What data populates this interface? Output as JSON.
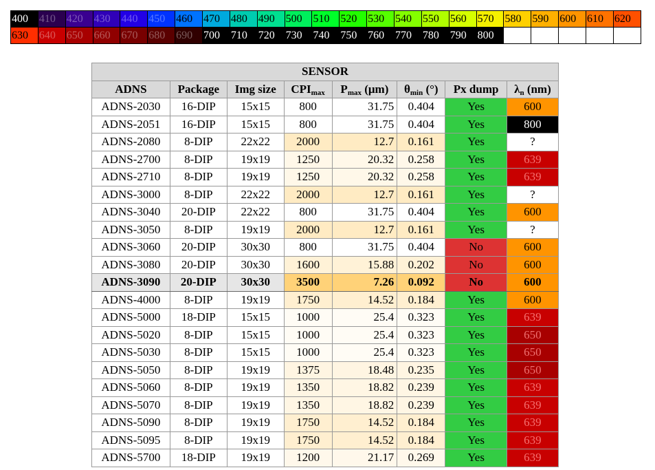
{
  "strip": {
    "rows": [
      [
        {
          "value": 400,
          "color": "#000000"
        },
        {
          "value": 410,
          "color": "#2a004f"
        },
        {
          "value": 420,
          "color": "#3a0090"
        },
        {
          "value": 430,
          "color": "#3000b8"
        },
        {
          "value": 440,
          "color": "#2200e6"
        },
        {
          "value": 450,
          "color": "#0033ff"
        },
        {
          "value": 460,
          "color": "#0073ff"
        },
        {
          "value": 470,
          "color": "#00aadd"
        },
        {
          "value": 480,
          "color": "#00ccb0"
        },
        {
          "value": 490,
          "color": "#00e090"
        },
        {
          "value": 500,
          "color": "#00f05c"
        },
        {
          "value": 510,
          "color": "#00ff2a"
        },
        {
          "value": 520,
          "color": "#22ff00"
        },
        {
          "value": 530,
          "color": "#55ff00"
        },
        {
          "value": 540,
          "color": "#84ff00"
        },
        {
          "value": 550,
          "color": "#b0ff00"
        },
        {
          "value": 560,
          "color": "#d6ff00"
        },
        {
          "value": 570,
          "color": "#f5f000"
        },
        {
          "value": 580,
          "color": "#ffd000"
        },
        {
          "value": 590,
          "color": "#ffb000"
        },
        {
          "value": 600,
          "color": "#ff9400"
        },
        {
          "value": 610,
          "color": "#ff7200"
        },
        {
          "value": 620,
          "color": "#ff5000"
        }
      ],
      [
        {
          "value": 630,
          "color": "#ff2e00"
        },
        {
          "value": 640,
          "color": "#c80000"
        },
        {
          "value": 650,
          "color": "#a80000"
        },
        {
          "value": 660,
          "color": "#900000"
        },
        {
          "value": 670,
          "color": "#780000"
        },
        {
          "value": 680,
          "color": "#5a0000"
        },
        {
          "value": 690,
          "color": "#300000"
        },
        {
          "value": 700,
          "color": "#000000"
        },
        {
          "value": 710,
          "color": "#000000"
        },
        {
          "value": 720,
          "color": "#000000"
        },
        {
          "value": 730,
          "color": "#000000"
        },
        {
          "value": 740,
          "color": "#000000"
        },
        {
          "value": 750,
          "color": "#000000"
        },
        {
          "value": 760,
          "color": "#000000"
        },
        {
          "value": 770,
          "color": "#000000"
        },
        {
          "value": 780,
          "color": "#000000"
        },
        {
          "value": 790,
          "color": "#000000"
        },
        {
          "value": 800,
          "color": "#000000"
        }
      ]
    ]
  },
  "table": {
    "title": "SENSOR",
    "columns": [
      {
        "main": "ADNS"
      },
      {
        "main": "Package"
      },
      {
        "main": "Img size"
      },
      {
        "main": "CPI",
        "sub": "max"
      },
      {
        "main": "P",
        "sub": "max",
        "suffix": " (μm)"
      },
      {
        "main": "θ",
        "sub": "min",
        "suffix": " (°)"
      },
      {
        "main": "Px dump"
      },
      {
        "main": "λ",
        "sub": "n",
        "suffix": " (nm)"
      }
    ],
    "rows": [
      {
        "cells": [
          "ADNS-2030",
          "16-DIP",
          "15x15",
          800,
          31.75,
          0.404,
          "Yes",
          600
        ]
      },
      {
        "cells": [
          "ADNS-2051",
          "16-DIP",
          "15x15",
          800,
          31.75,
          0.404,
          "Yes",
          800
        ]
      },
      {
        "cells": [
          "ADNS-2080",
          "8-DIP",
          "22x22",
          2000,
          12.7,
          0.161,
          "Yes",
          "?"
        ]
      },
      {
        "cells": [
          "ADNS-2700",
          "8-DIP",
          "19x19",
          1250,
          20.32,
          0.258,
          "Yes",
          639
        ]
      },
      {
        "cells": [
          "ADNS-2710",
          "8-DIP",
          "19x19",
          1250,
          20.32,
          0.258,
          "Yes",
          639
        ]
      },
      {
        "cells": [
          "ADNS-3000",
          "8-DIP",
          "22x22",
          2000,
          12.7,
          0.161,
          "Yes",
          "?"
        ]
      },
      {
        "cells": [
          "ADNS-3040",
          "20-DIP",
          "22x22",
          800,
          31.75,
          0.404,
          "Yes",
          600
        ]
      },
      {
        "cells": [
          "ADNS-3050",
          "8-DIP",
          "19x19",
          2000,
          12.7,
          0.161,
          "Yes",
          "?"
        ]
      },
      {
        "cells": [
          "ADNS-3060",
          "20-DIP",
          "30x30",
          800,
          31.75,
          0.404,
          "No",
          600
        ]
      },
      {
        "cells": [
          "ADNS-3080",
          "20-DIP",
          "30x30",
          1600,
          15.88,
          0.202,
          "No",
          600
        ]
      },
      {
        "cells": [
          "ADNS-3090",
          "20-DIP",
          "30x30",
          3500,
          7.26,
          0.092,
          "No",
          600
        ],
        "bold": true
      },
      {
        "cells": [
          "ADNS-4000",
          "8-DIP",
          "19x19",
          1750,
          14.52,
          0.184,
          "Yes",
          600
        ]
      },
      {
        "cells": [
          "ADNS-5000",
          "18-DIP",
          "15x15",
          1000,
          25.4,
          0.323,
          "Yes",
          639
        ]
      },
      {
        "cells": [
          "ADNS-5020",
          "8-DIP",
          "15x15",
          1000,
          25.4,
          0.323,
          "Yes",
          650
        ]
      },
      {
        "cells": [
          "ADNS-5030",
          "8-DIP",
          "15x15",
          1000,
          25.4,
          0.323,
          "Yes",
          650
        ]
      },
      {
        "cells": [
          "ADNS-5050",
          "8-DIP",
          "19x19",
          1375,
          18.48,
          0.235,
          "Yes",
          650
        ]
      },
      {
        "cells": [
          "ADNS-5060",
          "8-DIP",
          "19x19",
          1350,
          18.82,
          0.239,
          "Yes",
          639
        ]
      },
      {
        "cells": [
          "ADNS-5070",
          "8-DIP",
          "19x19",
          1350,
          18.82,
          0.239,
          "Yes",
          639
        ]
      },
      {
        "cells": [
          "ADNS-5090",
          "8-DIP",
          "19x19",
          1750,
          14.52,
          0.184,
          "Yes",
          639
        ]
      },
      {
        "cells": [
          "ADNS-5095",
          "8-DIP",
          "19x19",
          1750,
          14.52,
          0.184,
          "Yes",
          639
        ]
      },
      {
        "cells": [
          "ADNS-5700",
          "18-DIP",
          "19x19",
          1200,
          21.17,
          0.269,
          "Yes",
          639
        ]
      }
    ]
  }
}
